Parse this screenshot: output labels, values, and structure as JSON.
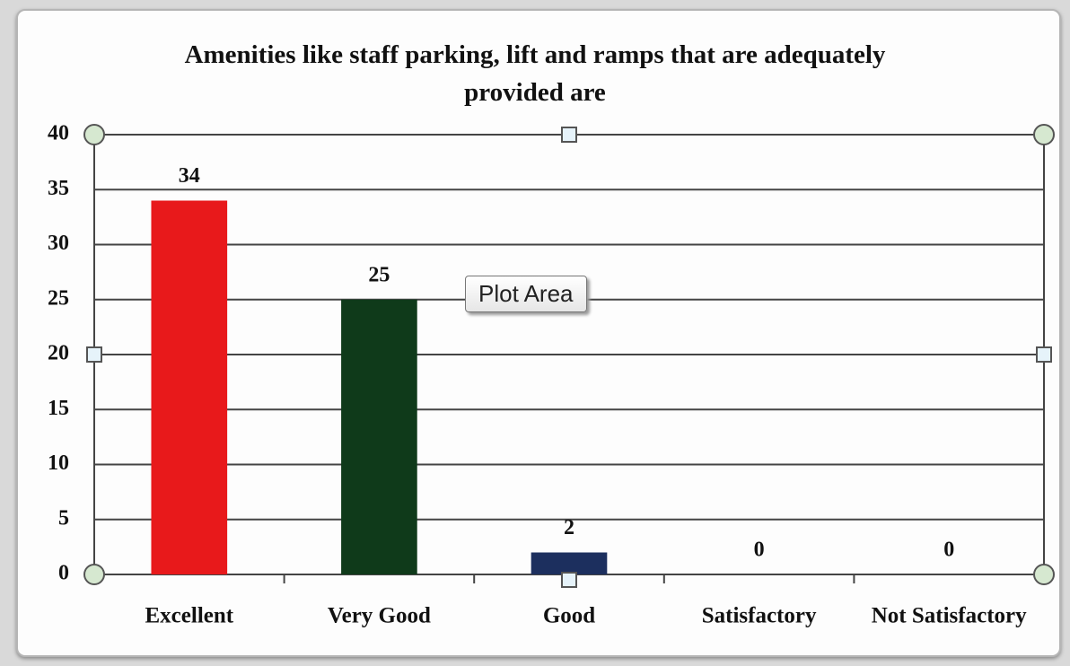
{
  "chart_data": {
    "type": "bar",
    "title": "Amenities like staff parking, lift and ramps that are adequately provided are",
    "categories": [
      "Excellent",
      "Very Good",
      "Good",
      "Satisfactory",
      "Not Satisfactory"
    ],
    "values": [
      34,
      25,
      2,
      0,
      0
    ],
    "colors": [
      "#e8191b",
      "#0f3a1a",
      "#1c2f5e",
      "#7030a0",
      "#f79646"
    ],
    "ylim": [
      0,
      40
    ],
    "yticks": [
      0,
      5,
      10,
      15,
      20,
      25,
      30,
      35,
      40
    ],
    "grid": true,
    "tooltip": "Plot Area"
  }
}
